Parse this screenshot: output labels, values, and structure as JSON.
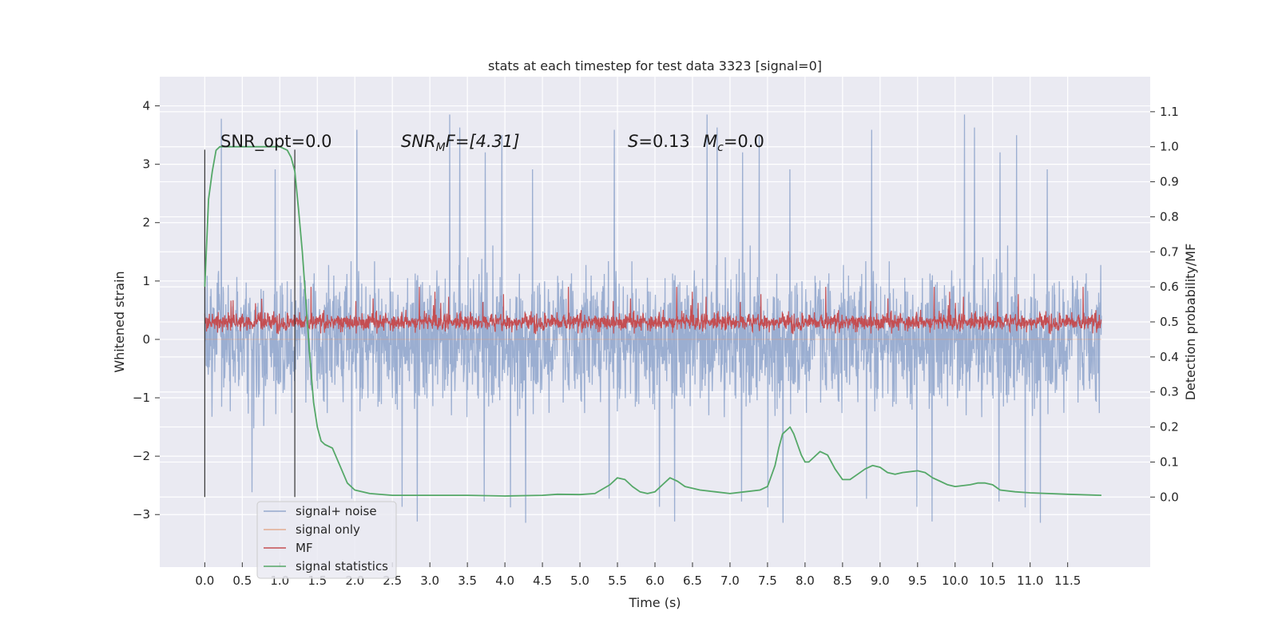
{
  "chart_data": {
    "type": "line",
    "title": "stats at each timestep for test data 3323 [signal=0]",
    "xlabel": "Time (s)",
    "ylabel_left": "Whitened strain",
    "ylabel_right": "Detection probability/MF",
    "xlim": [
      -0.6,
      12.6
    ],
    "ylim_left": [
      -3.9,
      4.5
    ],
    "ylim_right": [
      -0.2,
      1.2
    ],
    "x_ticks": [
      "0.0",
      "0.5",
      "1.0",
      "1.5",
      "2.0",
      "2.5",
      "3.0",
      "3.5",
      "4.0",
      "4.5",
      "5.0",
      "5.5",
      "6.0",
      "6.5",
      "7.0",
      "7.5",
      "8.0",
      "8.5",
      "9.0",
      "9.5",
      "10.0",
      "10.5",
      "11.0",
      "11.5"
    ],
    "y_ticks_left": [
      "4",
      "3",
      "2",
      "1",
      "0",
      "−1",
      "−2",
      "−3"
    ],
    "y_ticks_right": [
      "1.1",
      "1.0",
      "0.9",
      "0.8",
      "0.7",
      "0.6",
      "0.5",
      "0.4",
      "0.3",
      "0.2",
      "0.1",
      "0.0"
    ],
    "grid": true,
    "background": "#eaeaf2",
    "annotations": {
      "snr_opt": "SNR_opt=0.0",
      "snr_mf_prefix": "SNR",
      "snr_mf_sub": "M",
      "snr_mf_suffix": "F=[4.31]",
      "s_label": "S",
      "s_value": "=0.13",
      "mc_label": "M",
      "mc_sub": "c",
      "mc_value": "=0.0"
    },
    "vertical_lines_x": [
      0.0,
      1.2
    ],
    "legend": {
      "placement": "lower-left",
      "entries": [
        "signal+ noise",
        "signal only",
        "MF",
        "signal statistics"
      ]
    },
    "series": [
      {
        "name": "signal+ noise",
        "axis": "left",
        "color": "#4c72b0",
        "description_values": {
          "x_range": [
            0.0,
            11.95
          ],
          "approx_band": [
            -1.7,
            1.6
          ],
          "max": 4.1,
          "min": -3.5
        }
      },
      {
        "name": "signal only",
        "axis": "left",
        "color": "#dd8452",
        "x": [
          0.0,
          11.95
        ],
        "y": [
          0.0,
          0.0
        ]
      },
      {
        "name": "MF",
        "axis": "right",
        "color": "#c44e52",
        "description_values": {
          "x_range": [
            0.0,
            11.95
          ],
          "approx_band": [
            0.47,
            0.55
          ],
          "max": 0.6,
          "min": 0.45
        }
      },
      {
        "name": "signal statistics",
        "axis": "right",
        "color": "#55a868",
        "x": [
          0.0,
          0.05,
          0.1,
          0.15,
          0.2,
          0.3,
          0.5,
          0.8,
          1.0,
          1.1,
          1.15,
          1.2,
          1.25,
          1.3,
          1.35,
          1.4,
          1.45,
          1.5,
          1.55,
          1.6,
          1.7,
          1.8,
          1.9,
          2.0,
          2.2,
          2.5,
          3.0,
          3.5,
          4.0,
          4.5,
          4.7,
          5.0,
          5.2,
          5.4,
          5.5,
          5.6,
          5.7,
          5.8,
          5.9,
          6.0,
          6.1,
          6.2,
          6.3,
          6.4,
          6.6,
          6.8,
          7.0,
          7.2,
          7.4,
          7.5,
          7.55,
          7.6,
          7.65,
          7.7,
          7.8,
          7.85,
          7.9,
          7.95,
          8.0,
          8.05,
          8.1,
          8.2,
          8.3,
          8.4,
          8.5,
          8.6,
          8.7,
          8.8,
          8.9,
          9.0,
          9.1,
          9.2,
          9.3,
          9.5,
          9.6,
          9.7,
          9.8,
          9.9,
          10.0,
          10.2,
          10.3,
          10.4,
          10.5,
          10.6,
          10.8,
          11.0,
          11.5,
          11.95
        ],
        "y": [
          0.6,
          0.85,
          0.93,
          0.99,
          1.0,
          1.0,
          1.0,
          1.0,
          1.0,
          0.99,
          0.97,
          0.93,
          0.82,
          0.7,
          0.55,
          0.4,
          0.27,
          0.2,
          0.16,
          0.15,
          0.14,
          0.09,
          0.04,
          0.02,
          0.01,
          0.005,
          0.005,
          0.005,
          0.003,
          0.005,
          0.008,
          0.007,
          0.01,
          0.035,
          0.055,
          0.05,
          0.03,
          0.015,
          0.01,
          0.015,
          0.035,
          0.055,
          0.045,
          0.03,
          0.02,
          0.015,
          0.01,
          0.015,
          0.02,
          0.03,
          0.06,
          0.09,
          0.14,
          0.18,
          0.2,
          0.18,
          0.15,
          0.12,
          0.1,
          0.1,
          0.11,
          0.13,
          0.12,
          0.08,
          0.05,
          0.05,
          0.065,
          0.08,
          0.09,
          0.085,
          0.07,
          0.065,
          0.07,
          0.075,
          0.07,
          0.055,
          0.045,
          0.035,
          0.03,
          0.035,
          0.04,
          0.04,
          0.035,
          0.02,
          0.015,
          0.012,
          0.008,
          0.005
        ]
      }
    ]
  }
}
